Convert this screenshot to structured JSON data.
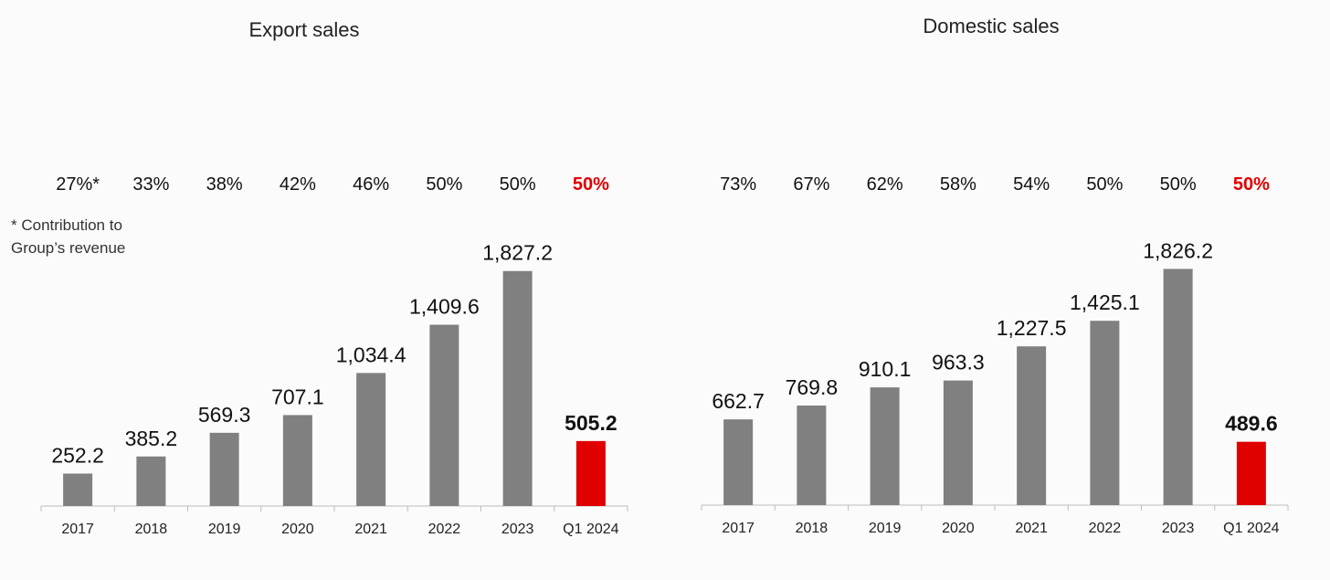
{
  "footnote": "* Contribution to Group’s revenue",
  "colors": {
    "bar": "#808080",
    "highlight_bar": "#e00000",
    "highlight_text": "#e00000"
  },
  "chart_data": [
    {
      "type": "bar",
      "title": "Export sales",
      "categories": [
        "2017",
        "2018",
        "2019",
        "2020",
        "2021",
        "2022",
        "2023",
        "Q1 2024"
      ],
      "values": [
        252.2,
        385.2,
        569.3,
        707.1,
        1034.4,
        1409.6,
        1827.2,
        505.2
      ],
      "value_labels": [
        "252.2",
        "385.2",
        "569.3",
        "707.1",
        "1,034.4",
        "1,409.6",
        "1,827.2",
        "505.2"
      ],
      "shares": [
        "27%*",
        "33%",
        "38%",
        "42%",
        "46%",
        "50%",
        "50%",
        "50%"
      ],
      "highlight_index": 7,
      "ylim": [
        0,
        1850
      ],
      "grid": false
    },
    {
      "type": "bar",
      "title": "Domestic sales",
      "categories": [
        "2017",
        "2018",
        "2019",
        "2020",
        "2021",
        "2022",
        "2023",
        "Q1 2024"
      ],
      "values": [
        662.7,
        769.8,
        910.1,
        963.3,
        1227.5,
        1425.1,
        1826.2,
        489.6
      ],
      "value_labels": [
        "662.7",
        "769.8",
        "910.1",
        "963.3",
        "1,227.5",
        "1,425.1",
        "1,826.2",
        "489.6"
      ],
      "shares": [
        "73%",
        "67%",
        "62%",
        "58%",
        "54%",
        "50%",
        "50%",
        "50%"
      ],
      "highlight_index": 7,
      "ylim": [
        0,
        1850
      ],
      "grid": false
    }
  ]
}
